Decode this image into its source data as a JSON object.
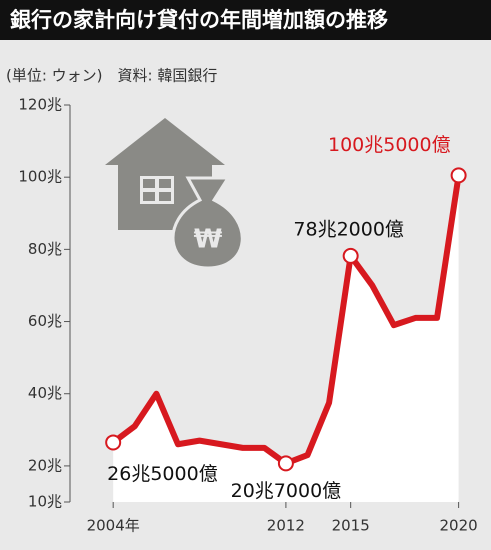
{
  "chart_data": {
    "type": "line",
    "title": "銀行の家計向け貸付の年間増加額の推移",
    "subtitle": "(単位: ウォン)　資料: 韓国銀行",
    "x": [
      2004,
      2005,
      2006,
      2007,
      2008,
      2009,
      2010,
      2011,
      2012,
      2013,
      2014,
      2015,
      2016,
      2017,
      2018,
      2019,
      2020
    ],
    "series": [
      {
        "color": "#d7191f",
        "values": [
          26.5,
          31,
          40,
          26,
          27,
          26,
          25,
          25,
          20.7,
          23,
          37.5,
          78.2,
          70,
          59,
          61,
          61,
          100.5
        ],
        "value_labels": [
          "26兆5000億",
          null,
          null,
          null,
          null,
          null,
          null,
          null,
          "20兆7000億",
          null,
          null,
          "78兆2000億",
          null,
          null,
          null,
          null,
          "100兆5000億"
        ]
      }
    ],
    "xlim": [
      2002,
      2021.5
    ],
    "xticks": [
      {
        "value": 2004,
        "label": "2004年"
      },
      2012,
      2015,
      2020
    ],
    "ylim": [
      10,
      120
    ],
    "yticks": [
      {
        "value": 10,
        "label": "10兆"
      },
      {
        "value": 20,
        "label": "20兆"
      },
      {
        "value": 40,
        "label": "40兆"
      },
      {
        "value": 60,
        "label": "60兆"
      },
      {
        "value": 80,
        "label": "80兆"
      },
      {
        "value": 100,
        "label": "100兆"
      },
      {
        "value": 120,
        "label": "120兆"
      }
    ]
  }
}
